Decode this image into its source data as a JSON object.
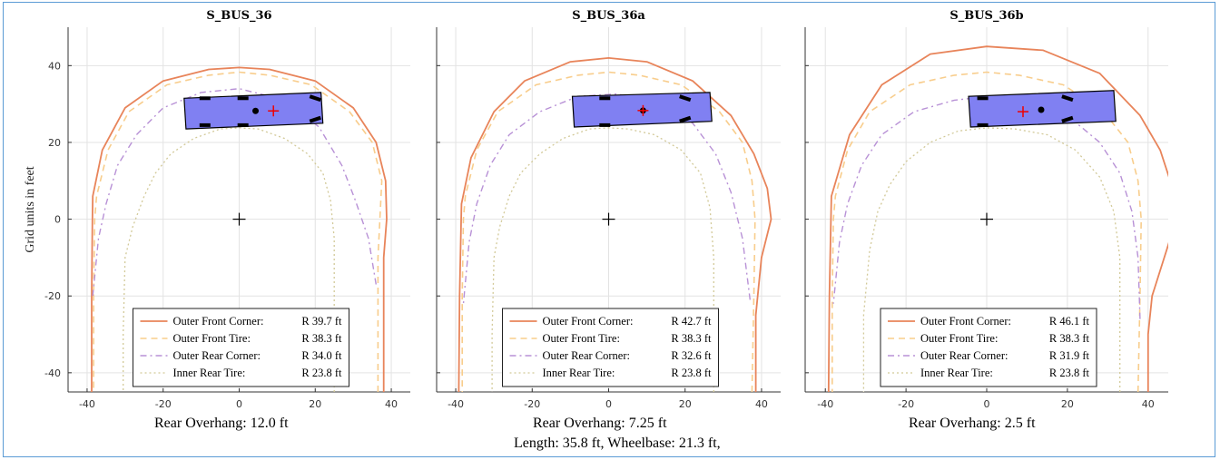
{
  "figure": {
    "ylabel": "Grid units in feet",
    "footer": "Length: 35.8 ft, Wheelbase: 21.3 ft,",
    "colors": {
      "outer_front_corner": "#e8845a",
      "outer_front_tire": "#f8cd8c",
      "outer_rear_corner": "#b891d6",
      "inner_rear_tire": "#d2c998",
      "bus_fill": "#8080f2"
    }
  },
  "chart_data": [
    {
      "type": "line",
      "title": "S_BUS_36",
      "caption": "Rear Overhang: 12.0 ft",
      "xlim": [
        -45,
        45
      ],
      "ylim": [
        -45,
        50
      ],
      "xticks": [
        -40,
        -20,
        0,
        20,
        40
      ],
      "yticks": [
        -40,
        -20,
        0,
        20,
        40
      ],
      "grid": true,
      "legend_position": "bottom-center",
      "series": [
        {
          "name": "Outer Front Corner:",
          "radius": "R 39.7 ft",
          "style": "solid",
          "x": [
            38,
            38,
            38.8,
            38.5,
            36,
            30,
            20,
            8,
            0,
            -8,
            -20,
            -30,
            -36,
            -38.5,
            -38.6,
            -38.8,
            -38.8
          ],
          "y": [
            -45,
            -10,
            0,
            10,
            20,
            29,
            36,
            39,
            39.5,
            39,
            36,
            29,
            18,
            6,
            0,
            -20,
            -45
          ]
        },
        {
          "name": "Outer Front Tire:",
          "radius": "R 38.3 ft",
          "style": "dashed",
          "x": [
            36.5,
            36.5,
            37,
            37.5,
            35,
            29,
            19,
            8,
            0,
            -8,
            -19,
            -29,
            -34.5,
            -37.5,
            -38,
            -38.3,
            -38.3
          ],
          "y": [
            -45,
            -10,
            0,
            10,
            20,
            28,
            35,
            37.5,
            38.3,
            37.5,
            35,
            28,
            18,
            6,
            0,
            -20,
            -45
          ]
        },
        {
          "name": "Outer Rear Corner:",
          "radius": "R 34.0 ft",
          "style": "dashdot",
          "x": [
            36,
            34,
            30.5,
            27,
            21,
            12,
            0,
            -10,
            -20,
            -27,
            -32,
            -35,
            -37,
            -38.5
          ],
          "y": [
            -17,
            -5,
            5,
            14,
            24,
            31,
            34,
            33,
            29,
            22,
            14,
            4,
            -5,
            -20
          ]
        },
        {
          "name": "Inner Rear Tire:",
          "radius": "R 23.8 ft",
          "style": "dotted",
          "x": [
            25,
            25,
            24,
            22,
            18,
            12,
            5,
            0,
            -5,
            -12,
            -18,
            -22,
            -25,
            -28,
            -30,
            -30.5,
            -30.5
          ],
          "y": [
            -45,
            -5,
            5,
            12,
            17,
            21,
            23.5,
            23.8,
            23.5,
            21,
            17,
            12,
            6,
            -2,
            -10,
            -30,
            -45
          ]
        }
      ],
      "vehicle": {
        "body": [
          [
            -14,
            23.5
          ],
          [
            22,
            25
          ],
          [
            21.5,
            33
          ],
          [
            -14.5,
            31.5
          ]
        ],
        "tires": [
          [
            -9,
            31.5
          ],
          [
            1,
            31.5
          ],
          [
            -9,
            24.5
          ],
          [
            1,
            24.5
          ],
          [
            20,
            32
          ],
          [
            20,
            25.5
          ]
        ],
        "center_dot": [
          4.3,
          28.2
        ],
        "cross": [
          9,
          28.2
        ]
      }
    },
    {
      "type": "line",
      "title": "S_BUS_36a",
      "caption": "Rear Overhang: 7.25 ft",
      "xlim": [
        -45,
        45
      ],
      "ylim": [
        -45,
        50
      ],
      "xticks": [
        -40,
        -20,
        0,
        20,
        40
      ],
      "yticks": [
        -40,
        -20,
        0,
        20,
        40
      ],
      "grid": true,
      "legend_position": "bottom-center",
      "series": [
        {
          "name": "Outer Front Corner:",
          "radius": "R 42.7 ft",
          "style": "solid",
          "x": [
            38.5,
            38.5,
            40,
            42.5,
            41.5,
            38,
            32,
            22,
            10,
            0,
            -10,
            -22,
            -30,
            -36,
            -38.5,
            -39,
            -39.2
          ],
          "y": [
            -45,
            -25,
            -10,
            0,
            8,
            17,
            27,
            36,
            41,
            42,
            41,
            36,
            28,
            16,
            4,
            -20,
            -45
          ]
        },
        {
          "name": "Outer Front Tire:",
          "radius": "R 38.3 ft",
          "style": "dashed",
          "x": [
            37.5,
            38,
            38.3,
            37.5,
            35,
            29,
            19,
            8,
            0,
            -8,
            -19,
            -29,
            -34.5,
            -37.5,
            -38,
            -38.3,
            -38.3
          ],
          "y": [
            -45,
            -20,
            0,
            10,
            20,
            28,
            35,
            37.5,
            38.3,
            37.5,
            35,
            28,
            18,
            6,
            0,
            -20,
            -45
          ]
        },
        {
          "name": "Outer Rear Corner:",
          "radius": "R 32.6 ft",
          "style": "dashdot",
          "x": [
            37,
            35,
            32,
            28,
            22,
            12,
            2,
            -8,
            -18,
            -26,
            -31,
            -34.5,
            -36.5,
            -38
          ],
          "y": [
            -21,
            -5,
            7,
            17,
            25,
            31,
            32.6,
            32,
            28,
            22,
            14,
            4,
            -6,
            -22
          ]
        },
        {
          "name": "Inner Rear Tire:",
          "radius": "R 23.8 ft",
          "style": "dotted",
          "x": [
            27.5,
            27.5,
            26.5,
            24,
            19,
            12,
            5,
            0,
            -5,
            -12,
            -18,
            -23,
            -26,
            -28.5,
            -30,
            -30.5,
            -30.5
          ],
          "y": [
            -45,
            -10,
            3,
            12,
            18,
            22,
            23.5,
            23.8,
            23.5,
            21,
            17,
            12,
            6,
            -2,
            -10,
            -30,
            -45
          ]
        }
      ],
      "vehicle": {
        "body": [
          [
            -9,
            24
          ],
          [
            27,
            25.5
          ],
          [
            26.5,
            33
          ],
          [
            -9.5,
            32
          ]
        ],
        "tires": [
          [
            -1,
            31.5
          ],
          [
            -1,
            24.5
          ],
          [
            20,
            32
          ],
          [
            20,
            25.5
          ]
        ],
        "center_dot": [
          9,
          28.3
        ],
        "cross": [
          9,
          28.3
        ]
      }
    },
    {
      "type": "line",
      "title": "S_BUS_36b",
      "caption": "Rear Overhang: 2.5 ft",
      "xlim": [
        -45,
        45
      ],
      "ylim": [
        -45,
        50
      ],
      "xticks": [
        -40,
        -20,
        0,
        20,
        40
      ],
      "yticks": [
        -40,
        -20,
        0,
        20,
        40
      ],
      "grid": true,
      "legend_position": "bottom-center",
      "series": [
        {
          "name": "Outer Front Corner:",
          "radius": "R 46.1 ft",
          "style": "solid",
          "x": [
            40,
            40,
            41,
            44,
            47,
            45.5,
            43,
            38,
            28,
            14,
            0,
            -14,
            -26,
            -34,
            -38.5,
            -39,
            -39.2
          ],
          "y": [
            -45,
            -30,
            -20,
            -10,
            0,
            10,
            18,
            27,
            38,
            44,
            45,
            43,
            35,
            22,
            6,
            -20,
            -45
          ]
        },
        {
          "name": "Outer Front Tire:",
          "radius": "R 38.3 ft",
          "style": "dashed",
          "x": [
            37.5,
            38,
            38.3,
            37.5,
            35,
            29,
            19,
            8,
            0,
            -8,
            -19,
            -29,
            -34.5,
            -37.5,
            -38,
            -38.3,
            -38.3
          ],
          "y": [
            -45,
            -20,
            0,
            10,
            20,
            28,
            35,
            37.5,
            38.3,
            37.5,
            35,
            28,
            18,
            6,
            0,
            -20,
            -45
          ]
        },
        {
          "name": "Outer Rear Corner:",
          "radius": "R 31.9 ft",
          "style": "dashdot",
          "x": [
            38,
            37.5,
            36,
            33,
            28,
            20,
            8,
            0,
            -8,
            -18,
            -26,
            -31,
            -34.5,
            -36.5,
            -38
          ],
          "y": [
            -26,
            -10,
            2,
            12,
            20,
            27,
            31,
            31.9,
            31,
            28,
            22,
            14,
            4,
            -6,
            -22
          ]
        },
        {
          "name": "Inner Rear Tire:",
          "radius": "R 23.8 ft",
          "style": "dotted",
          "x": [
            33,
            33,
            31.5,
            28,
            22,
            15,
            7,
            0,
            -7,
            -14,
            -20,
            -24,
            -27,
            -29,
            -30.5,
            -30.5
          ],
          "y": [
            -45,
            -10,
            2,
            11,
            18,
            22,
            23.5,
            23.8,
            23,
            20,
            15,
            9,
            2,
            -8,
            -25,
            -45
          ]
        }
      ],
      "vehicle": {
        "body": [
          [
            -4,
            24
          ],
          [
            32,
            25.5
          ],
          [
            31.5,
            33.5
          ],
          [
            -4.5,
            32
          ]
        ],
        "tires": [
          [
            -1,
            31.5
          ],
          [
            -1,
            24.5
          ],
          [
            20,
            32
          ],
          [
            20,
            25.5
          ]
        ],
        "center_dot": [
          13.5,
          28.5
        ],
        "cross": [
          9,
          28
        ]
      }
    }
  ]
}
